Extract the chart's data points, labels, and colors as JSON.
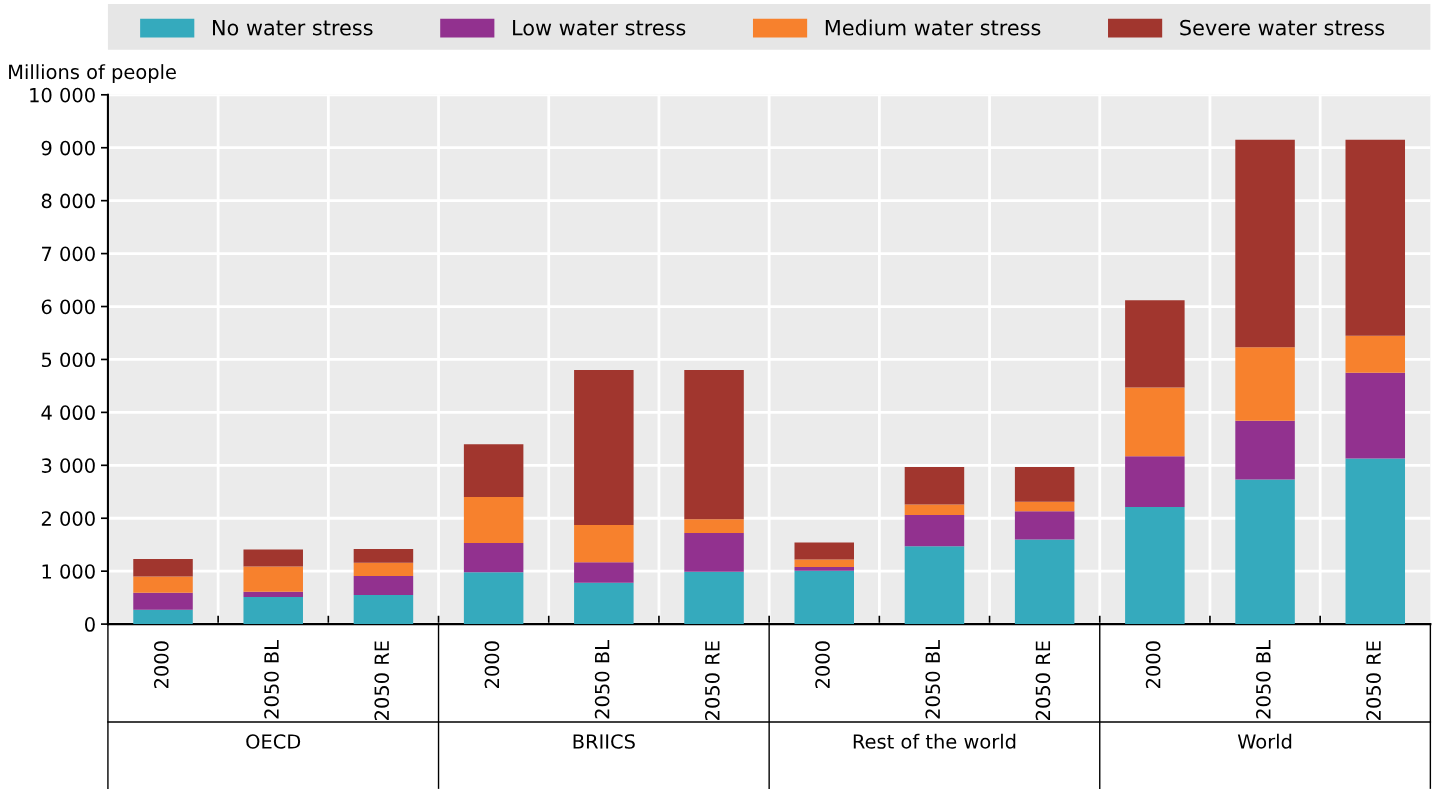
{
  "chart_data": {
    "type": "bar",
    "stacked": true,
    "ylabel": "Millions of people",
    "categories": [
      "2000",
      "2050 BL",
      "2050 RE",
      "2000",
      "2050 BL",
      "2050 RE",
      "2000",
      "2050 BL",
      "2050 RE",
      "2000",
      "2050 BL",
      "2050 RE"
    ],
    "annotations": [
      "OECD",
      "BRIICS",
      "Rest of the world",
      "World"
    ],
    "series": [
      {
        "name": "No water stress",
        "color": "#35aabd",
        "values": [
          270,
          510,
          550,
          980,
          780,
          990,
          1010,
          1470,
          1600,
          2210,
          2730,
          3130
        ]
      },
      {
        "name": "Low water stress",
        "color": "#92318f",
        "values": [
          320,
          100,
          360,
          550,
          390,
          730,
          70,
          590,
          530,
          960,
          1110,
          1620
        ]
      },
      {
        "name": "Medium water stress",
        "color": "#f7812d",
        "values": [
          310,
          480,
          250,
          870,
          700,
          260,
          140,
          200,
          180,
          1300,
          1390,
          700
        ]
      },
      {
        "name": "Severe water stress",
        "color": "#a1362e",
        "values": [
          330,
          320,
          260,
          1000,
          2930,
          2820,
          320,
          710,
          660,
          1650,
          3920,
          3700
        ]
      }
    ],
    "ylim": [
      0,
      10000
    ],
    "yticks": [
      0,
      {
        "value": 1000,
        "label": "1 000"
      },
      {
        "value": 2000,
        "label": "2 000"
      },
      {
        "value": 3000,
        "label": "3 000"
      },
      {
        "value": 4000,
        "label": "4 000"
      },
      {
        "value": 5000,
        "label": "5 000"
      },
      {
        "value": 6000,
        "label": "6 000"
      },
      {
        "value": 7000,
        "label": "7 000"
      },
      {
        "value": 8000,
        "label": "8 000"
      },
      {
        "value": 9000,
        "label": "9 000"
      },
      {
        "value": 10000,
        "label": "10 000"
      }
    ],
    "grid": true,
    "legend": "top"
  }
}
